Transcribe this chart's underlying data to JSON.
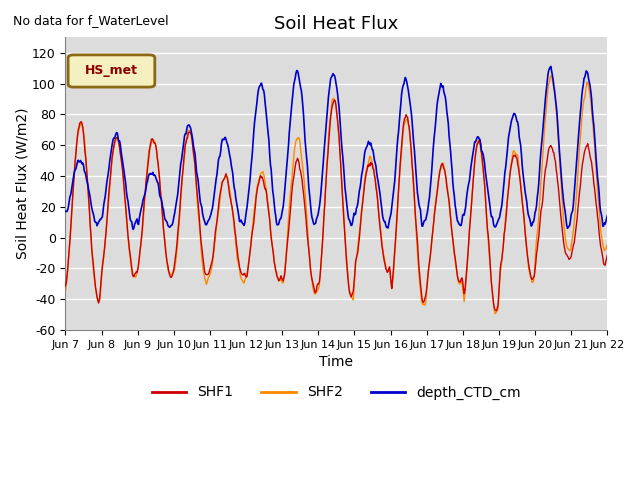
{
  "title": "Soil Heat Flux",
  "ylabel": "Soil Heat Flux (W/m2)",
  "xlabel": "Time",
  "top_left_text": "No data for f_WaterLevel",
  "legend_box_text": "HS_met",
  "ylim": [
    -60,
    130
  ],
  "yticks": [
    -60,
    -40,
    -20,
    0,
    20,
    40,
    60,
    80,
    100,
    120
  ],
  "x_tick_labels": [
    "Jun 7",
    "Jun 8",
    "Jun 9",
    "Jun 10",
    "Jun 11",
    "Jun 12",
    "Jun 13",
    "Jun 14",
    "Jun 15",
    "Jun 16",
    "Jun 17",
    "Jun 18",
    "Jun 19",
    "Jun 20",
    "Jun 21",
    "Jun 22"
  ],
  "shf1_color": "#cc0000",
  "shf2_color": "#ff8800",
  "depth_color": "#0000cc",
  "bg_color": "#dcdcdc",
  "legend_entries": [
    "SHF1",
    "SHF2",
    "depth_CTD_cm"
  ],
  "legend_colors": [
    "#cc0000",
    "#ff8800",
    "#0000cc"
  ],
  "figsize": [
    6.4,
    4.8
  ],
  "dpi": 100
}
